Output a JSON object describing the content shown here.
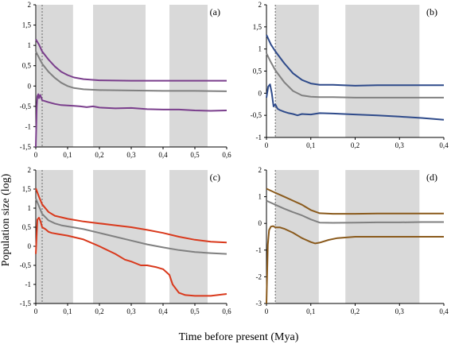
{
  "ylabel": "Population size (log)",
  "xlabel": "Time before present (Mya)",
  "colors": {
    "median": "#808080",
    "shade": "#d9d9d9",
    "vline": "#666666"
  },
  "chart_data": [
    {
      "type": "line",
      "label": "(a)",
      "color": "#7a3e8c",
      "xlim": [
        0,
        0.6
      ],
      "ylim": [
        -1.5,
        2
      ],
      "xticks": [
        0,
        0.1,
        0.2,
        0.3,
        0.4,
        0.5,
        0.6
      ],
      "xtick_labels": [
        "0",
        "0,1",
        "0,2",
        "0,3",
        "0,4",
        "0,5",
        "0,6"
      ],
      "yticks": [
        -1.5,
        -1,
        -0.5,
        0,
        0.5,
        1,
        1.5,
        2
      ],
      "ytick_labels": [
        "-1,5",
        "-1",
        "-0,5",
        "0",
        "0,5",
        "1",
        "1,5",
        "2"
      ],
      "shaded_x": [
        [
          0.003,
          0.117
        ],
        [
          0.18,
          0.345
        ],
        [
          0.42,
          0.54
        ]
      ],
      "vline_x": 0.02,
      "series": [
        {
          "role": "upper",
          "x": [
            0,
            0.01,
            0.02,
            0.04,
            0.06,
            0.08,
            0.1,
            0.12,
            0.15,
            0.2,
            0.3,
            0.4,
            0.5,
            0.6
          ],
          "y": [
            1.15,
            1.02,
            0.85,
            0.65,
            0.48,
            0.35,
            0.27,
            0.21,
            0.17,
            0.14,
            0.13,
            0.13,
            0.13,
            0.13
          ]
        },
        {
          "role": "median",
          "x": [
            0,
            0.01,
            0.02,
            0.04,
            0.06,
            0.08,
            0.1,
            0.12,
            0.15,
            0.2,
            0.3,
            0.4,
            0.5,
            0.6
          ],
          "y": [
            0.85,
            0.7,
            0.55,
            0.35,
            0.2,
            0.08,
            0.0,
            -0.05,
            -0.08,
            -0.1,
            -0.11,
            -0.12,
            -0.12,
            -0.13
          ]
        },
        {
          "role": "lower",
          "x": [
            0,
            0.003,
            0.005,
            0.008,
            0.01,
            0.014,
            0.02,
            0.04,
            0.06,
            0.08,
            0.1,
            0.12,
            0.14,
            0.16,
            0.18,
            0.2,
            0.25,
            0.3,
            0.35,
            0.4,
            0.45,
            0.5,
            0.55,
            0.6
          ],
          "y": [
            -1.5,
            -0.5,
            -0.25,
            -0.2,
            -0.3,
            -0.22,
            -0.35,
            -0.4,
            -0.44,
            -0.47,
            -0.48,
            -0.49,
            -0.5,
            -0.52,
            -0.5,
            -0.53,
            -0.55,
            -0.54,
            -0.57,
            -0.58,
            -0.58,
            -0.6,
            -0.61,
            -0.6
          ]
        }
      ]
    },
    {
      "type": "line",
      "label": "(b)",
      "color": "#2e4a8a",
      "xlim": [
        0,
        0.4
      ],
      "ylim": [
        -1,
        2
      ],
      "xticks": [
        0,
        0.1,
        0.2,
        0.3,
        0.4
      ],
      "xtick_labels": [
        "0",
        "0,1",
        "0,2",
        "0,3",
        "0,4"
      ],
      "yticks": [
        -1,
        -0.5,
        0,
        0.5,
        1,
        1.5,
        2
      ],
      "ytick_labels": [
        "-1",
        "-0,5",
        "0",
        "0,5",
        "1",
        "1,5",
        "2"
      ],
      "shaded_x": [
        [
          0.02,
          0.118
        ],
        [
          0.178,
          0.345
        ]
      ],
      "vline_x": 0.02,
      "series": [
        {
          "role": "upper",
          "x": [
            0,
            0.01,
            0.02,
            0.04,
            0.06,
            0.08,
            0.1,
            0.12,
            0.15,
            0.2,
            0.25,
            0.3,
            0.35,
            0.4
          ],
          "y": [
            1.32,
            1.1,
            0.95,
            0.68,
            0.45,
            0.3,
            0.22,
            0.19,
            0.19,
            0.17,
            0.18,
            0.18,
            0.18,
            0.18
          ]
        },
        {
          "role": "median",
          "x": [
            0,
            0.01,
            0.02,
            0.04,
            0.06,
            0.08,
            0.1,
            0.12,
            0.15,
            0.2,
            0.25,
            0.3,
            0.35,
            0.4
          ],
          "y": [
            0.9,
            0.7,
            0.52,
            0.25,
            0.05,
            -0.05,
            -0.08,
            -0.09,
            -0.09,
            -0.1,
            -0.1,
            -0.1,
            -0.1,
            -0.1
          ]
        },
        {
          "role": "lower",
          "x": [
            0,
            0.004,
            0.008,
            0.012,
            0.016,
            0.02,
            0.025,
            0.03,
            0.04,
            0.05,
            0.06,
            0.07,
            0.08,
            0.1,
            0.12,
            0.15,
            0.2,
            0.25,
            0.3,
            0.35,
            0.4
          ],
          "y": [
            -0.1,
            0.15,
            0.2,
            0.0,
            -0.3,
            -0.25,
            -0.35,
            -0.38,
            -0.42,
            -0.45,
            -0.47,
            -0.5,
            -0.47,
            -0.48,
            -0.45,
            -0.46,
            -0.48,
            -0.5,
            -0.53,
            -0.56,
            -0.6
          ]
        }
      ]
    },
    {
      "type": "line",
      "label": "(c)",
      "color": "#d9391c",
      "xlim": [
        0,
        0.6
      ],
      "ylim": [
        -1.5,
        2
      ],
      "xticks": [
        0,
        0.1,
        0.2,
        0.3,
        0.4,
        0.5,
        0.6
      ],
      "xtick_labels": [
        "0",
        "0,1",
        "0,2",
        "0,3",
        "0,4",
        "0,5",
        "0,6"
      ],
      "yticks": [
        -1.5,
        -1,
        -0.5,
        0,
        0.5,
        1,
        1.5,
        2
      ],
      "ytick_labels": [
        "-1,5",
        "-1",
        "-0,5",
        "0",
        "0,5",
        "1",
        "1,5",
        "2"
      ],
      "shaded_x": [
        [
          0.003,
          0.117
        ],
        [
          0.18,
          0.345
        ],
        [
          0.42,
          0.54
        ]
      ],
      "vline_x": 0.02,
      "series": [
        {
          "role": "upper",
          "x": [
            0,
            0.01,
            0.02,
            0.04,
            0.06,
            0.08,
            0.1,
            0.15,
            0.2,
            0.25,
            0.3,
            0.35,
            0.4,
            0.45,
            0.5,
            0.55,
            0.6
          ],
          "y": [
            1.52,
            1.3,
            1.1,
            0.9,
            0.8,
            0.76,
            0.72,
            0.65,
            0.6,
            0.55,
            0.5,
            0.43,
            0.35,
            0.25,
            0.17,
            0.12,
            0.1
          ]
        },
        {
          "role": "median",
          "x": [
            0,
            0.01,
            0.02,
            0.04,
            0.06,
            0.08,
            0.1,
            0.15,
            0.2,
            0.25,
            0.3,
            0.35,
            0.4,
            0.45,
            0.5,
            0.55,
            0.6
          ],
          "y": [
            1.25,
            1.05,
            0.85,
            0.68,
            0.6,
            0.55,
            0.52,
            0.45,
            0.35,
            0.25,
            0.15,
            0.05,
            -0.03,
            -0.1,
            -0.15,
            -0.18,
            -0.2
          ]
        },
        {
          "role": "lower",
          "x": [
            0,
            0.005,
            0.01,
            0.015,
            0.02,
            0.03,
            0.04,
            0.05,
            0.07,
            0.1,
            0.15,
            0.2,
            0.25,
            0.28,
            0.3,
            0.33,
            0.35,
            0.38,
            0.4,
            0.42,
            0.43,
            0.45,
            0.47,
            0.5,
            0.55,
            0.6
          ],
          "y": [
            -0.2,
            0.7,
            0.75,
            0.65,
            0.5,
            0.45,
            0.38,
            0.35,
            0.32,
            0.28,
            0.18,
            0.0,
            -0.2,
            -0.35,
            -0.4,
            -0.5,
            -0.5,
            -0.55,
            -0.6,
            -0.75,
            -1.0,
            -1.22,
            -1.28,
            -1.3,
            -1.3,
            -1.25
          ]
        }
      ]
    },
    {
      "type": "line",
      "label": "(d)",
      "color": "#8a5a1c",
      "xlim": [
        0,
        0.4
      ],
      "ylim": [
        -3,
        2
      ],
      "xticks": [
        0,
        0.1,
        0.2,
        0.3,
        0.4
      ],
      "xtick_labels": [
        "0",
        "0,1",
        "0,2",
        "0,3",
        "0,4"
      ],
      "yticks": [
        -3,
        -2,
        -1,
        0,
        1,
        2
      ],
      "ytick_labels": [
        "-3",
        "-2",
        "-1",
        "0",
        "1",
        "2"
      ],
      "shaded_x": [
        [
          0.02,
          0.118
        ],
        [
          0.178,
          0.345
        ]
      ],
      "vline_x": 0.02,
      "series": [
        {
          "role": "upper",
          "x": [
            0,
            0.02,
            0.04,
            0.06,
            0.08,
            0.1,
            0.12,
            0.15,
            0.2,
            0.25,
            0.3,
            0.35,
            0.4
          ],
          "y": [
            1.3,
            1.15,
            1.0,
            0.85,
            0.7,
            0.5,
            0.38,
            0.36,
            0.36,
            0.37,
            0.37,
            0.37,
            0.37
          ]
        },
        {
          "role": "median",
          "x": [
            0,
            0.02,
            0.04,
            0.06,
            0.08,
            0.1,
            0.12,
            0.15,
            0.2,
            0.25,
            0.3,
            0.35,
            0.4
          ],
          "y": [
            0.85,
            0.7,
            0.55,
            0.42,
            0.3,
            0.15,
            0.03,
            0.02,
            0.03,
            0.04,
            0.04,
            0.05,
            0.05
          ]
        },
        {
          "role": "lower",
          "x": [
            0,
            0.003,
            0.006,
            0.01,
            0.015,
            0.02,
            0.03,
            0.04,
            0.06,
            0.08,
            0.1,
            0.11,
            0.12,
            0.14,
            0.16,
            0.2,
            0.25,
            0.3,
            0.35,
            0.4
          ],
          "y": [
            -3,
            -0.8,
            -0.25,
            -0.12,
            -0.1,
            -0.15,
            -0.15,
            -0.2,
            -0.35,
            -0.55,
            -0.7,
            -0.75,
            -0.72,
            -0.62,
            -0.55,
            -0.5,
            -0.5,
            -0.5,
            -0.5,
            -0.5
          ]
        }
      ]
    }
  ]
}
